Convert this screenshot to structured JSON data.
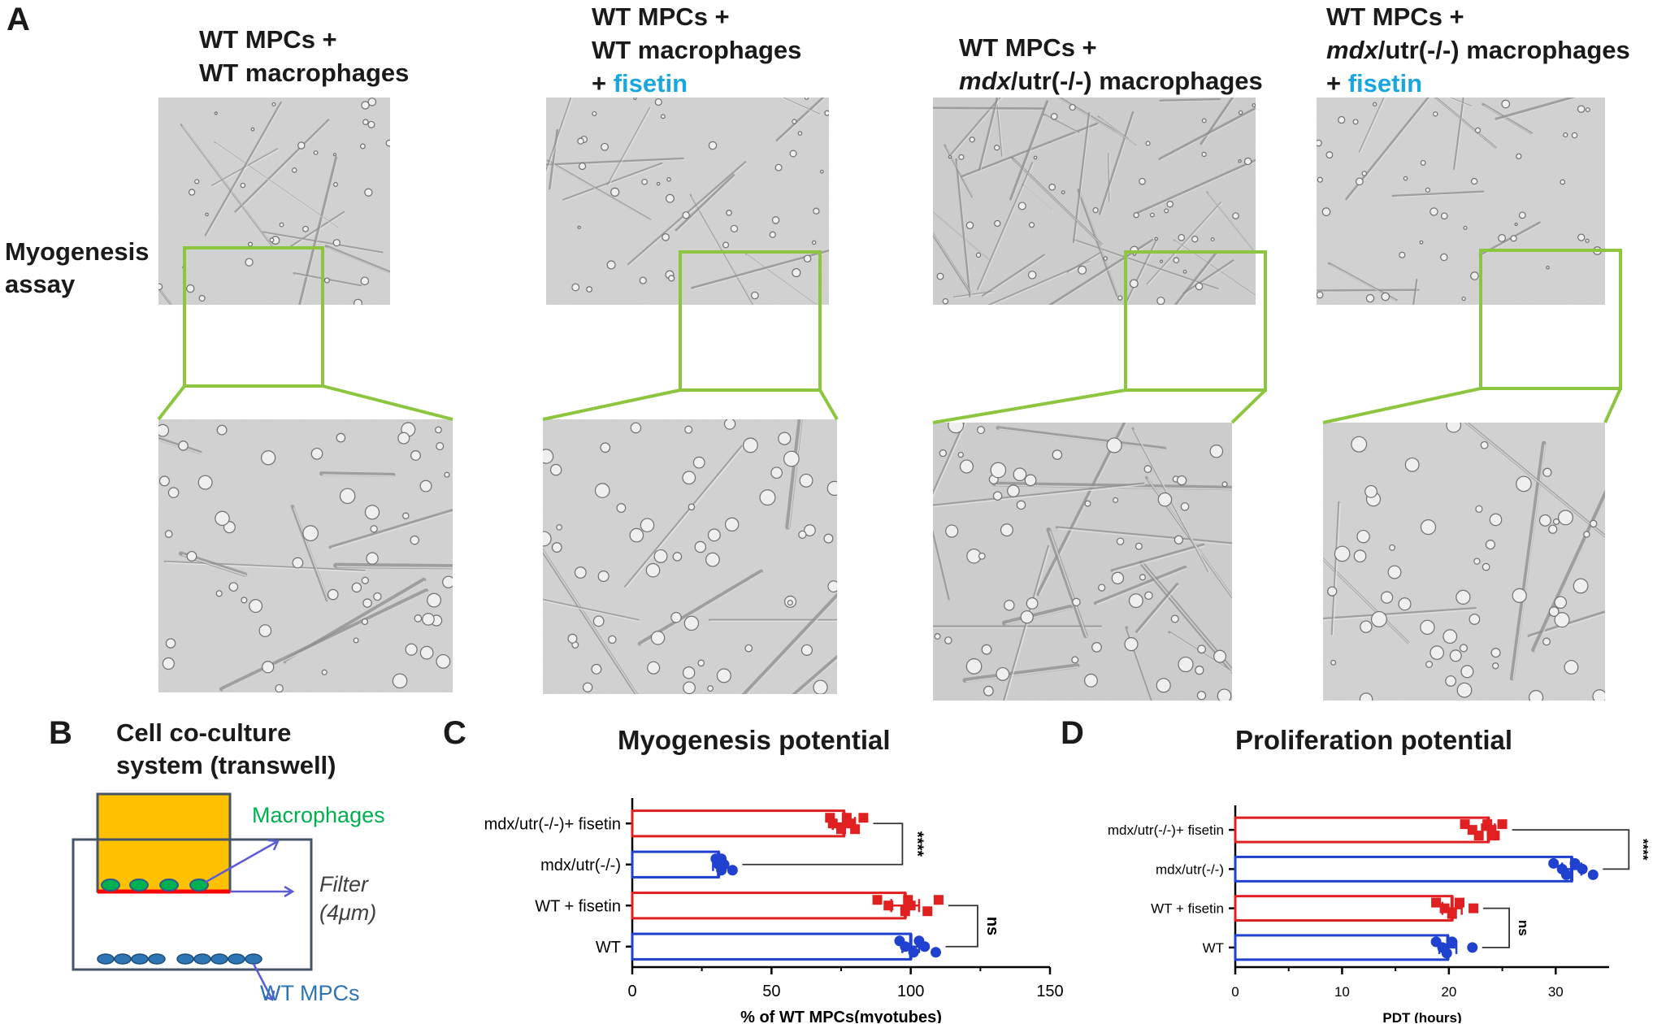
{
  "panel_labels": {
    "a": "A",
    "b": "B",
    "c": "C",
    "d": "D"
  },
  "panel_a": {
    "row_label": [
      "Myogenesis",
      "assay"
    ],
    "conditions": [
      {
        "lines": [
          [
            "WT MPCs +"
          ],
          [
            "WT macrophages"
          ]
        ]
      },
      {
        "lines": [
          [
            "WT MPCs +"
          ],
          [
            "WT  macrophages"
          ],
          [
            "+ ",
            "fisetin"
          ]
        ]
      },
      {
        "lines": [
          [
            "WT MPCs +"
          ],
          [
            "mdx",
            "/utr(-/-) macrophages"
          ]
        ]
      },
      {
        "lines": [
          [
            "WT MPCs +"
          ],
          [
            "mdx",
            "/utr(-/-) macrophages"
          ],
          [
            "+ ",
            "fisetin"
          ]
        ]
      }
    ],
    "colors": {
      "fisetin": "#1aa7e0",
      "zoom_box": "#8cc63f"
    }
  },
  "panel_b": {
    "title_lines": [
      "Cell co-culture",
      "system   (transwell)"
    ],
    "labels": {
      "macrophages": "Macrophages",
      "filter": "Filter",
      "pore": "(4μm)",
      "mpcs": "WT MPCs"
    },
    "colors": {
      "insert": "#ffc000",
      "macrophage_cells": "#00b050",
      "filter": "#ff0000",
      "mpc_cells": "#2e75b6",
      "outline": "#44546a"
    }
  },
  "chart_data": [
    {
      "type": "bar",
      "orientation": "horizontal",
      "title": "Myogenesis potential",
      "xlabel": "% of WT MPCs(myotubes)",
      "categories": [
        "mdx/utr(-/-)+ fisetin",
        "mdx/utr(-/-)",
        "WT + fisetin",
        "WT"
      ],
      "values": [
        76,
        31,
        98,
        100
      ],
      "errors": [
        4,
        2,
        5,
        3
      ],
      "points": [
        [
          71,
          72,
          75,
          77,
          78,
          80,
          83
        ],
        [
          30,
          31,
          32,
          32,
          33,
          36
        ],
        [
          88,
          92,
          98,
          99,
          100,
          106,
          110
        ],
        [
          96,
          98,
          101,
          103,
          105,
          109
        ]
      ],
      "colors": [
        "#e02020",
        "#2040d0",
        "#e02020",
        "#2040d0"
      ],
      "xlim": [
        0,
        150
      ],
      "xticks": [
        0,
        50,
        100,
        150
      ],
      "significance": [
        {
          "between": [
            0,
            1
          ],
          "label": "****"
        },
        {
          "between": [
            2,
            3
          ],
          "label": "ns"
        }
      ]
    },
    {
      "type": "bar",
      "orientation": "horizontal",
      "title": "Proliferation potential",
      "xlabel": "PDT (hours)",
      "categories": [
        "mdx/utr(-/-)+ fisetin",
        "mdx/utr(-/-)",
        "WT + fisetin",
        "WT"
      ],
      "values": [
        23.7,
        31.5,
        20.3,
        19.9
      ],
      "errors": [
        0.6,
        0.9,
        0.9,
        0.8
      ],
      "points": [
        [
          21.5,
          22.2,
          22.8,
          23.6,
          24.0,
          24.3,
          25.0
        ],
        [
          29.8,
          30.6,
          31.0,
          31.8,
          32.5,
          33.5
        ],
        [
          18.8,
          19.6,
          20.3,
          21.0,
          22.3
        ],
        [
          18.8,
          19.4,
          19.8,
          20.3,
          22.2
        ]
      ],
      "colors": [
        "#e02020",
        "#2040d0",
        "#e02020",
        "#2040d0"
      ],
      "xlim": [
        0,
        35
      ],
      "xticks": [
        0,
        10,
        20,
        30
      ],
      "significance": [
        {
          "between": [
            0,
            1
          ],
          "label": "****"
        },
        {
          "between": [
            2,
            3
          ],
          "label": "ns"
        }
      ]
    }
  ]
}
